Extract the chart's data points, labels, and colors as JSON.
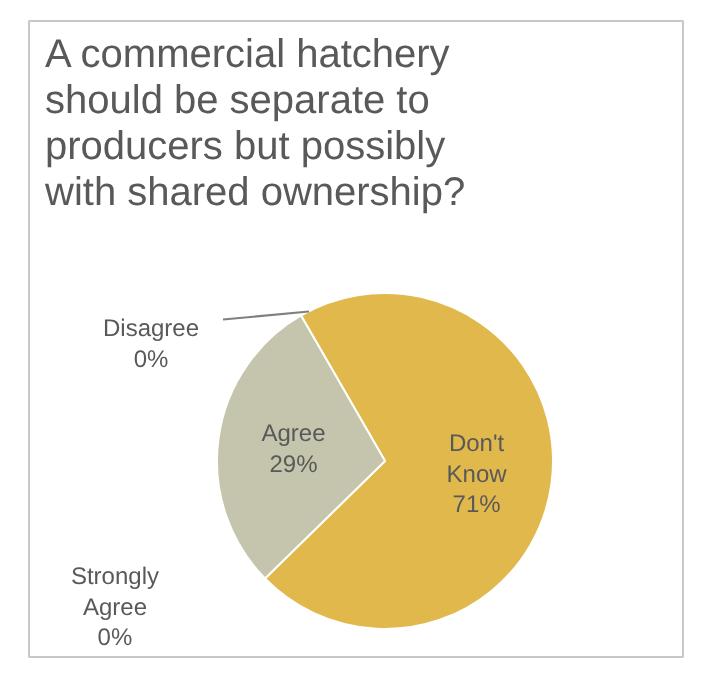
{
  "chart_data": {
    "type": "pie",
    "title": "A commercial hatchery should be separate to producers but possibly with shared ownership?",
    "categories": [
      "Don't Know",
      "Strongly Agree",
      "Agree",
      "Disagree"
    ],
    "values": [
      71,
      0,
      29,
      0
    ],
    "colors": [
      "#e1b84c",
      "#c9c9b3",
      "#c4c5ac",
      "#a9a98f"
    ],
    "value_labels": [
      "71%",
      "0%",
      "29%",
      "0%"
    ]
  }
}
